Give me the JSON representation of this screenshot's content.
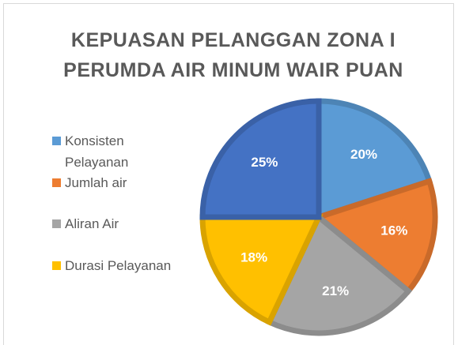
{
  "chart_data": {
    "type": "pie",
    "title": "KEPUASAN PELANGGAN ZONA I PERUMDA AIR MINUM WAIR PUAN",
    "categories": [
      "Konsisten Pelayanan",
      "Jumlah air",
      "Aliran Air",
      "Durasi Pelayanan",
      null
    ],
    "values": [
      20,
      16,
      21,
      18,
      25
    ],
    "value_labels": [
      "20%",
      "16%",
      "21%",
      "18%",
      "25%"
    ],
    "colors": [
      "#5b9bd5",
      "#ed7d31",
      "#a5a5a5",
      "#ffc000",
      "#4472c4"
    ],
    "legend": "left"
  }
}
